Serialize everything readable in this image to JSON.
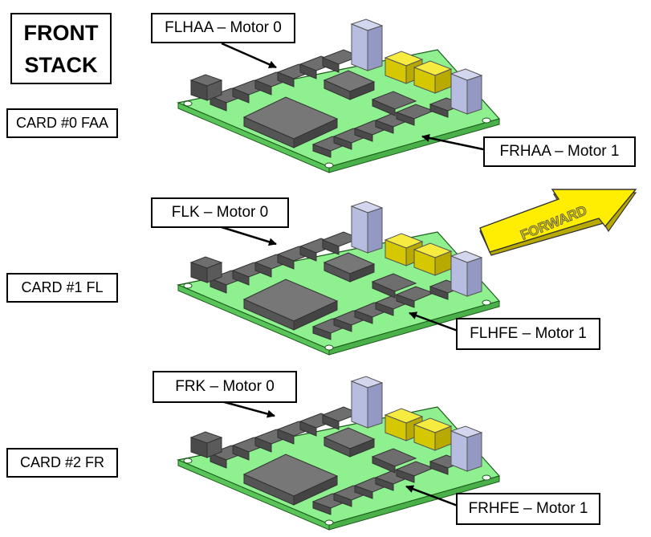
{
  "title": {
    "line1": "FRONT",
    "line2": "STACK"
  },
  "cards": [
    {
      "label": "CARD #0 FAA",
      "motor0": "FLHAA – Motor 0",
      "motor1": "FRHAA – Motor 1"
    },
    {
      "label": "CARD #1 FL",
      "motor0": "FLK – Motor 0",
      "motor1": "FLHFE – Motor 1"
    },
    {
      "label": "CARD #2 FR",
      "motor0": "FRK – Motor 0",
      "motor1": "FRHFE – Motor 1"
    }
  ],
  "forward_arrow": {
    "text": "FORWARD",
    "color": "#ffee00"
  },
  "colors": {
    "board_top": "#8ef08e",
    "board_side": "#4fbf4f",
    "chip": "#6b6b6b",
    "connector_yellow": "#f2e000",
    "connector_blue": "#b7bde0"
  }
}
